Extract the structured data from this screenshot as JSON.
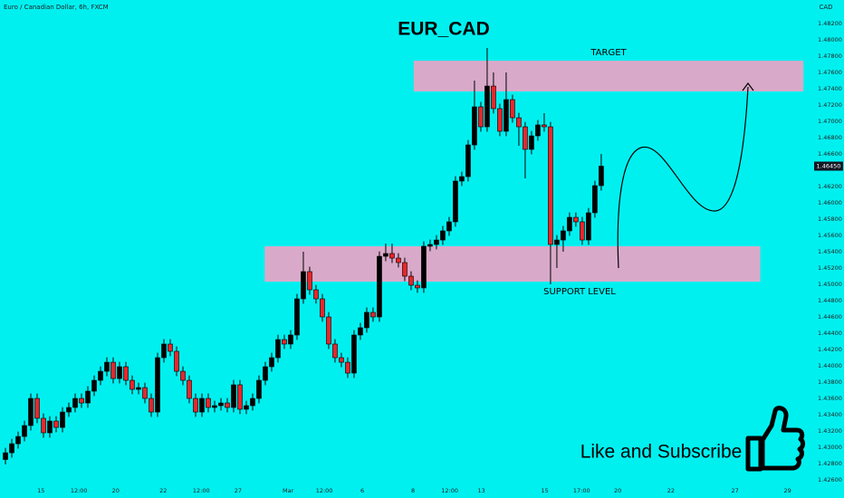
{
  "chart_data": {
    "type": "candlestick",
    "title": "EUR_CAD",
    "subtitle": "Euro / Canadian Dollar, 6h, FXCM",
    "y_axis_label": "CAD",
    "annotation": "Like and Subscribe",
    "up_color": "#000000",
    "down_color": "#e8262b",
    "background": "#00f0f0",
    "grid": false,
    "open": [
      1.4285,
      1.42933,
      1.43044,
      1.43133,
      1.43267,
      1.436,
      1.43356,
      1.43178,
      1.43322,
      1.43244,
      1.43433,
      1.43489,
      1.436,
      1.43544,
      1.43689,
      1.43822,
      1.43933,
      1.44044,
      1.43844,
      1.43989,
      1.43822,
      1.43711,
      1.43733,
      1.436,
      1.43433,
      1.441,
      1.44267,
      1.44178,
      1.43933,
      1.43822,
      1.436,
      1.43433,
      1.436,
      1.43489,
      1.43511,
      1.43544,
      1.43489,
      1.43767,
      1.43467,
      1.43511,
      1.436,
      1.43822,
      1.43989,
      1.441,
      1.44322,
      1.44267,
      1.44378,
      1.44822,
      1.45156,
      1.44933,
      1.44822,
      1.446,
      1.44267,
      1.441,
      1.44044,
      1.43911,
      1.44378,
      1.44467,
      1.44656,
      1.446,
      1.45344,
      1.45378,
      1.45322,
      1.45267,
      1.451,
      1.44989,
      1.44956,
      1.45467,
      1.45489,
      1.45544,
      1.45656,
      1.45767,
      1.46267,
      1.46322,
      1.46711,
      1.47178,
      1.46933,
      1.47433,
      1.47156,
      1.46878,
      1.47267,
      1.47044,
      1.46933,
      1.46656,
      1.46822,
      1.46956,
      1.46933,
      1.45489,
      1.45544,
      1.45656,
      1.45822,
      1.45767,
      1.45544,
      1.45878,
      1.46211
    ],
    "high": [
      1.42993,
      1.43104,
      1.43193,
      1.43327,
      1.4366,
      1.4366,
      1.43416,
      1.43382,
      1.43382,
      1.43493,
      1.43549,
      1.4366,
      1.4366,
      1.43749,
      1.43882,
      1.43993,
      1.44104,
      1.44104,
      1.44049,
      1.44049,
      1.43882,
      1.43793,
      1.43793,
      1.4366,
      1.4416,
      1.44327,
      1.44327,
      1.44238,
      1.43993,
      1.43882,
      1.4366,
      1.4366,
      1.4366,
      1.43571,
      1.43604,
      1.43604,
      1.43827,
      1.43827,
      1.43571,
      1.4366,
      1.43882,
      1.44049,
      1.4416,
      1.44382,
      1.44382,
      1.44438,
      1.44882,
      1.454,
      1.45216,
      1.44993,
      1.44882,
      1.4466,
      1.44327,
      1.4416,
      1.44104,
      1.44438,
      1.44527,
      1.44716,
      1.44716,
      1.45404,
      1.455,
      1.455,
      1.45382,
      1.45327,
      1.4516,
      1.45049,
      1.45527,
      1.45549,
      1.45604,
      1.45716,
      1.45827,
      1.46327,
      1.46382,
      1.46771,
      1.475,
      1.47238,
      1.479,
      1.476,
      1.47216,
      1.476,
      1.47327,
      1.47104,
      1.46993,
      1.46882,
      1.47016,
      1.471,
      1.46993,
      1.45604,
      1.45716,
      1.45882,
      1.45882,
      1.45827,
      1.45938,
      1.46271,
      1.466
    ],
    "low": [
      1.4279,
      1.42873,
      1.42984,
      1.43073,
      1.43207,
      1.43296,
      1.43118,
      1.43118,
      1.43184,
      1.43184,
      1.43373,
      1.43429,
      1.43484,
      1.43484,
      1.43629,
      1.43762,
      1.43873,
      1.43784,
      1.43784,
      1.43762,
      1.43651,
      1.43651,
      1.4354,
      1.43373,
      1.43373,
      1.4404,
      1.44118,
      1.43873,
      1.43762,
      1.4354,
      1.43373,
      1.43373,
      1.43429,
      1.43429,
      1.43451,
      1.43429,
      1.43429,
      1.43407,
      1.43407,
      1.43451,
      1.4354,
      1.43762,
      1.43929,
      1.4404,
      1.44207,
      1.44207,
      1.44318,
      1.44762,
      1.44873,
      1.44762,
      1.4454,
      1.44207,
      1.4404,
      1.43984,
      1.43851,
      1.43851,
      1.44318,
      1.44407,
      1.4454,
      1.4454,
      1.45284,
      1.45262,
      1.45207,
      1.4504,
      1.44929,
      1.44896,
      1.44896,
      1.45407,
      1.45429,
      1.45484,
      1.45596,
      1.45707,
      1.46207,
      1.46262,
      1.46651,
      1.46873,
      1.46873,
      1.47096,
      1.46818,
      1.46818,
      1.46984,
      1.467,
      1.463,
      1.46596,
      1.46762,
      1.46873,
      1.45,
      1.452,
      1.454,
      1.45596,
      1.45707,
      1.45484,
      1.45484,
      1.45818,
      1.46151
    ],
    "close": [
      1.42933,
      1.43044,
      1.43133,
      1.43267,
      1.436,
      1.43356,
      1.43178,
      1.43322,
      1.43244,
      1.43433,
      1.43489,
      1.436,
      1.43544,
      1.43689,
      1.43822,
      1.43933,
      1.44044,
      1.43844,
      1.43989,
      1.43822,
      1.43711,
      1.43733,
      1.436,
      1.43433,
      1.441,
      1.44267,
      1.44178,
      1.43933,
      1.43822,
      1.436,
      1.43433,
      1.436,
      1.43489,
      1.43511,
      1.43544,
      1.43489,
      1.43767,
      1.43467,
      1.43511,
      1.436,
      1.43822,
      1.43989,
      1.441,
      1.44322,
      1.44267,
      1.44378,
      1.44822,
      1.45156,
      1.44933,
      1.44822,
      1.446,
      1.44267,
      1.441,
      1.44044,
      1.43911,
      1.44378,
      1.44467,
      1.44656,
      1.446,
      1.45344,
      1.45378,
      1.45322,
      1.45267,
      1.451,
      1.44989,
      1.44956,
      1.45467,
      1.45489,
      1.45544,
      1.45656,
      1.45767,
      1.46267,
      1.46322,
      1.46711,
      1.47178,
      1.46933,
      1.47433,
      1.47156,
      1.46878,
      1.47267,
      1.47044,
      1.46933,
      1.46656,
      1.46822,
      1.46956,
      1.46933,
      1.45489,
      1.45544,
      1.45656,
      1.45822,
      1.45767,
      1.45544,
      1.45878,
      1.46211,
      1.4645
    ],
    "current_price": {
      "value": 1.4645,
      "label": "1.46450"
    },
    "xlim": [
      -0.86,
      126.3
    ],
    "ylim": [
      1.42578,
      1.48489
    ],
    "xticks": [
      {
        "value": 5.6,
        "label": "15"
      },
      {
        "value": 11.6,
        "label": "12:00"
      },
      {
        "value": 17.4,
        "label": "20"
      },
      {
        "value": 24.9,
        "label": "22"
      },
      {
        "value": 30.9,
        "label": "12:00"
      },
      {
        "value": 36.7,
        "label": "27"
      },
      {
        "value": 44.6,
        "label": "Mar"
      },
      {
        "value": 50.3,
        "label": "12:00"
      },
      {
        "value": 56.3,
        "label": "6"
      },
      {
        "value": 64.3,
        "label": "8"
      },
      {
        "value": 70.1,
        "label": "12:00"
      },
      {
        "value": 75.1,
        "label": "13"
      },
      {
        "value": 85.1,
        "label": "15"
      },
      {
        "value": 90.9,
        "label": "17:00"
      },
      {
        "value": 96.6,
        "label": "20"
      },
      {
        "value": 105,
        "label": "22"
      },
      {
        "value": 115.1,
        "label": "27"
      },
      {
        "value": 123.4,
        "label": "29"
      }
    ],
    "yticks": [
      {
        "value": 1.482,
        "label": "1.48200"
      },
      {
        "value": 1.48,
        "label": "1.48000"
      },
      {
        "value": 1.478,
        "label": "1.47800"
      },
      {
        "value": 1.476,
        "label": "1.47600"
      },
      {
        "value": 1.474,
        "label": "1.47400"
      },
      {
        "value": 1.472,
        "label": "1.47200"
      },
      {
        "value": 1.47,
        "label": "1.47000"
      },
      {
        "value": 1.468,
        "label": "1.46800"
      },
      {
        "value": 1.466,
        "label": "1.46600"
      },
      {
        "value": 1.462,
        "label": "1.46200"
      },
      {
        "value": 1.46,
        "label": "1.46000"
      },
      {
        "value": 1.458,
        "label": "1.45800"
      },
      {
        "value": 1.456,
        "label": "1.45600"
      },
      {
        "value": 1.454,
        "label": "1.45400"
      },
      {
        "value": 1.452,
        "label": "1.45200"
      },
      {
        "value": 1.45,
        "label": "1.45000"
      },
      {
        "value": 1.448,
        "label": "1.44800"
      },
      {
        "value": 1.446,
        "label": "1.44600"
      },
      {
        "value": 1.444,
        "label": "1.44400"
      },
      {
        "value": 1.442,
        "label": "1.44200"
      },
      {
        "value": 1.44,
        "label": "1.44000"
      },
      {
        "value": 1.438,
        "label": "1.43800"
      },
      {
        "value": 1.436,
        "label": "1.43600"
      },
      {
        "value": 1.434,
        "label": "1.43400"
      },
      {
        "value": 1.432,
        "label": "1.43200"
      },
      {
        "value": 1.43,
        "label": "1.43000"
      },
      {
        "value": 1.428,
        "label": "1.42800"
      },
      {
        "value": 1.426,
        "label": "1.42600"
      }
    ],
    "zones": [
      {
        "label": "TARGET",
        "x": [
          64.4,
          125.9
        ],
        "y": [
          1.47367,
          1.47744
        ],
        "color": "#d9a9c9"
      },
      {
        "label": "SUPPORT LEVEL",
        "x": [
          40.9,
          119.1
        ],
        "y": [
          1.45033,
          1.45467
        ],
        "color": "#d9a9c9"
      }
    ]
  }
}
